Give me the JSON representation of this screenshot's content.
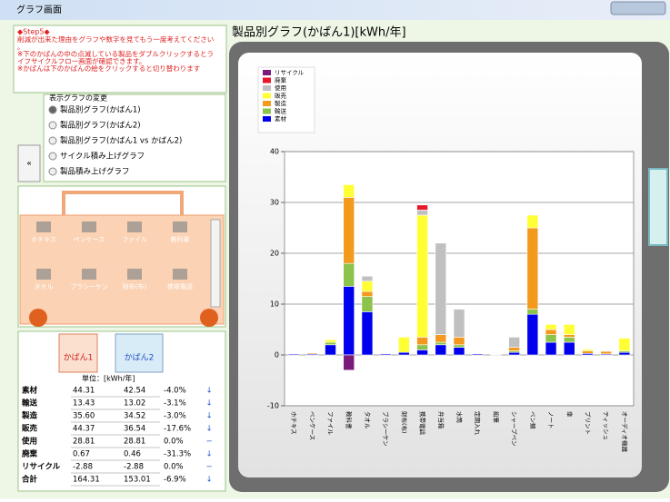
{
  "window": {
    "title": "グラフ画面"
  },
  "step": {
    "heading": "◆Step5◆",
    "lines": [
      "削減が出来た理由をグラフや数字を見てもう一度考えてください。",
      "※下のかばんの中の点滅している製品をダブルクリックするとライフサイクルフロー画面が確認できます。",
      "※かばんは下のかばんの絵をクリックすると切り替わります"
    ]
  },
  "graph_select": {
    "label": "表示グラフの変更",
    "options": [
      "製品別グラフ(かばん1)",
      "製品別グラフ(かばん2)",
      "製品別グラフ(かばん1 vs かばん2)",
      "サイクル積み上げグラフ",
      "製品積み上げグラフ"
    ],
    "button": "«"
  },
  "items": [
    "ホチキス",
    "ペンケース",
    "ファイル",
    "教科書",
    "タオル",
    "ブラシーケン",
    "財布(布)",
    "携帯電話"
  ],
  "bags": [
    "かばん1",
    "かばん2"
  ],
  "table": {
    "unit": "単位：[kWh/年]",
    "rows": [
      [
        "素材",
        "44.31",
        "42.54",
        "-4.0%",
        "↓"
      ],
      [
        "輸送",
        "13.43",
        "13.02",
        "-3.1%",
        "↓"
      ],
      [
        "製造",
        "35.60",
        "34.52",
        "-3.0%",
        "↓"
      ],
      [
        "販売",
        "44.37",
        "36.54",
        "-17.6%",
        "↓"
      ],
      [
        "使用",
        "28.81",
        "28.81",
        "0.0%",
        "−"
      ],
      [
        "廃棄",
        "0.67",
        "0.46",
        "-31.3%",
        "↓"
      ],
      [
        "リサイクル",
        "-2.88",
        "-2.88",
        "0.0%",
        "−"
      ],
      [
        "合計",
        "164.31",
        "153.01",
        "-6.9%",
        "↓"
      ]
    ]
  },
  "chart_data": {
    "type": "stacked_bar",
    "title": "製品別グラフ(かばん1)[kWh/年]",
    "categories": [
      "ホチキス",
      "ペンケース",
      "ファイル",
      "教科書",
      "タオル",
      "ブラシーケン",
      "財布(布)",
      "携帯電話",
      "弁当箱",
      "水筒",
      "定期入れ",
      "鉛筆",
      "シャープペン",
      "ペン類",
      "ノート",
      "傘",
      "プリント",
      "ティッシュ",
      "オーディオ機器"
    ],
    "series": [
      {
        "name": "素材",
        "color": "#0000ee",
        "values": [
          0.2,
          0.2,
          2,
          13.5,
          8.5,
          0.2,
          0.5,
          1,
          2,
          1.5,
          0.2,
          0.1,
          0.5,
          8,
          2.5,
          2.5,
          0.3,
          0.2,
          0.5
        ]
      },
      {
        "name": "輸送",
        "color": "#8cc34a",
        "values": [
          0,
          0,
          0.5,
          4.5,
          3,
          0,
          0,
          1,
          0.5,
          0.5,
          0,
          0,
          0.3,
          1,
          1.5,
          1,
          0,
          0,
          0.3
        ]
      },
      {
        "name": "製造",
        "color": "#f39a1e",
        "values": [
          0.1,
          0.2,
          0,
          13,
          1,
          0,
          0,
          1.5,
          1.5,
          1.5,
          0,
          0,
          0.7,
          16,
          1,
          0.5,
          0.5,
          0.5,
          0
        ]
      },
      {
        "name": "販売",
        "color": "#ffff33",
        "values": [
          0,
          0,
          0.5,
          2.5,
          2,
          0,
          3,
          24,
          0,
          0,
          0,
          0,
          0,
          2.5,
          1,
          2,
          0.3,
          0,
          2.5
        ]
      },
      {
        "name": "使用",
        "color": "#c0c0c0",
        "values": [
          0,
          0,
          0,
          0,
          1,
          0,
          0,
          1,
          18,
          5.5,
          0,
          0,
          2,
          0,
          0,
          0,
          0,
          0,
          0
        ]
      },
      {
        "name": "廃棄",
        "color": "#e8182c",
        "values": [
          0,
          0,
          0,
          0,
          0,
          0,
          0,
          1,
          0,
          0,
          0,
          0,
          0,
          0,
          0,
          0,
          0,
          0,
          0
        ]
      },
      {
        "name": "リサイクル",
        "color": "#7a1a7a",
        "values": [
          0,
          0,
          0,
          -3,
          0,
          0,
          0,
          0,
          0,
          0,
          0,
          0,
          0,
          0,
          0,
          0,
          0,
          0,
          0
        ]
      }
    ],
    "ylim": [
      -10,
      40
    ],
    "yticks": [
      -10,
      0,
      10,
      20,
      30,
      40
    ],
    "grid": true
  }
}
